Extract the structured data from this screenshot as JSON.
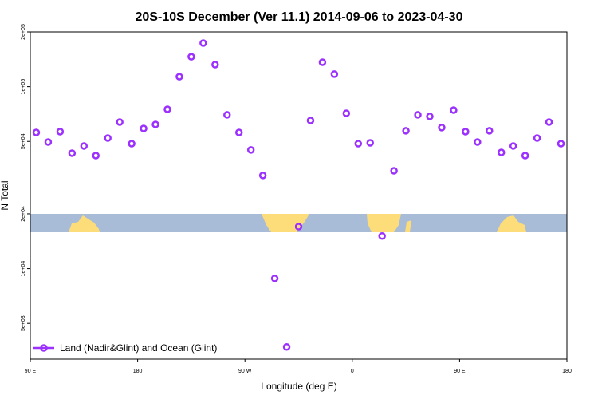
{
  "chart_data": {
    "type": "scatter",
    "title": "20S-10S December (Ver 11.1)   2014-09-06 to 2023-04-30",
    "x_label": "Longitude (deg E)",
    "y_label": "N Total",
    "log_y": true,
    "legend_position": "lower left",
    "xlim": [
      90,
      540
    ],
    "xticks": [
      {
        "value": 90,
        "label": "90 E"
      },
      {
        "value": 180,
        "label": "180"
      },
      {
        "value": 270,
        "label": "90 W"
      },
      {
        "value": 360,
        "label": "0"
      },
      {
        "value": 450,
        "label": "90 E"
      },
      {
        "value": 540,
        "label": "180"
      }
    ],
    "ylim": [
      3180,
      200000
    ],
    "yticks": [
      {
        "value": 5000,
        "label": "5e+03"
      },
      {
        "value": 10000,
        "label": "1e+04"
      },
      {
        "value": 20000,
        "label": "2e+04"
      },
      {
        "value": 50000,
        "label": "5e+04"
      },
      {
        "value": 100000,
        "label": "1e+05"
      },
      {
        "value": 200000,
        "label": "2e+05"
      }
    ],
    "series": [
      {
        "name": "Land (Nadir&Glint) and Ocean (Glint)",
        "color": "#9b30ff",
        "x": [
          95,
          105,
          115,
          125,
          135,
          145,
          155,
          165,
          175,
          185,
          195,
          205,
          215,
          225,
          235,
          245,
          255,
          265,
          275,
          285,
          295,
          305,
          315,
          325,
          335,
          345,
          355,
          365,
          375,
          385,
          395,
          405,
          415,
          425,
          435,
          445,
          455,
          465,
          475,
          485,
          495,
          505,
          515,
          525,
          535
        ],
        "values": [
          56000,
          49600,
          56600,
          43100,
          47200,
          41800,
          52200,
          63900,
          48600,
          58900,
          62000,
          75100,
          113500,
          146000,
          173600,
          132200,
          70000,
          56000,
          44900,
          32500,
          8830,
          3710,
          17000,
          65200,
          136300,
          117200,
          71400,
          48600,
          49100,
          15100,
          34500,
          57200,
          70000,
          68600,
          59600,
          74300,
          56600,
          49600,
          57200,
          43500,
          47200,
          41800,
          52200,
          63900,
          48600
        ]
      }
    ]
  }
}
